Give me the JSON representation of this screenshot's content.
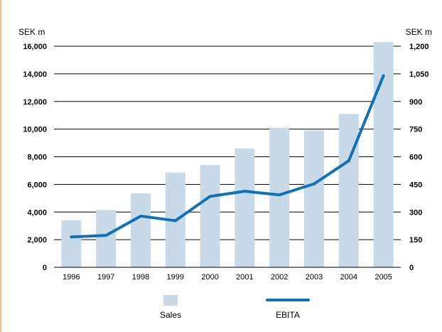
{
  "chart_data": {
    "type": "bar",
    "categories": [
      "1996",
      "1997",
      "1998",
      "1999",
      "2000",
      "2001",
      "2002",
      "2003",
      "2004",
      "2005"
    ],
    "series": [
      {
        "name": "Sales",
        "type": "bar",
        "axis": "left",
        "values": [
          3400,
          4150,
          5350,
          6850,
          7400,
          8600,
          10100,
          9900,
          11100,
          16300
        ],
        "color": "#c8d9e8"
      },
      {
        "name": "EBITA",
        "type": "line",
        "axis": "right",
        "values": [
          165,
          173,
          278,
          253,
          385,
          413,
          393,
          453,
          578,
          1040
        ],
        "color": "#1070b8"
      }
    ],
    "left_axis": {
      "unit": "SEK m",
      "ylim": [
        0,
        16000
      ],
      "ticks": [
        "0",
        "2,000",
        "4,000",
        "6,000",
        "8,000",
        "10,000",
        "12,000",
        "14,000",
        "16,000"
      ]
    },
    "right_axis": {
      "unit": "SEK m",
      "ylim": [
        0,
        1200
      ],
      "ticks": [
        "0",
        "150",
        "300",
        "450",
        "600",
        "750",
        "900",
        "1,050",
        "1,200"
      ]
    },
    "grid": true,
    "legend_position": "bottom"
  }
}
